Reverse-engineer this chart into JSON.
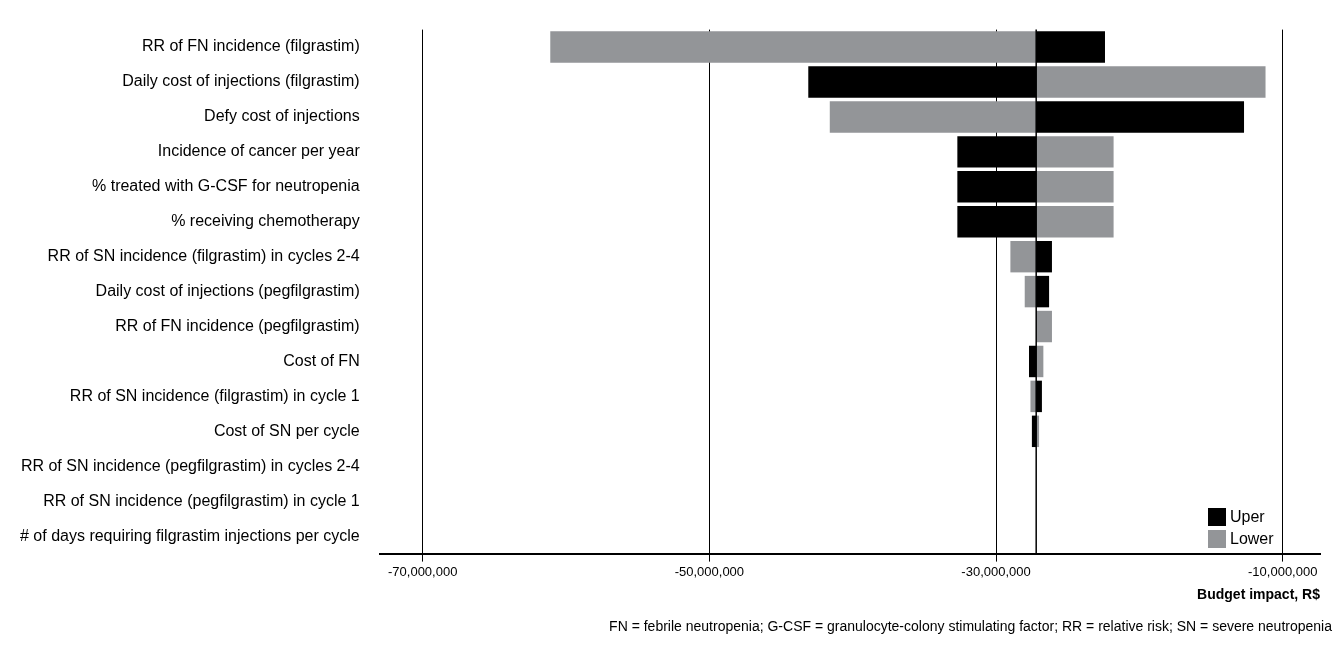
{
  "chart_data": {
    "type": "bar",
    "orientation": "horizontal",
    "xlabel": "Budget impact, R$",
    "categories": [
      "RR of FN incidence (filgrastim)",
      "Daily cost of injections (filgrastim)",
      "Defy cost of injections",
      "Incidence of cancer per year",
      "% treated with G-CSF for neutropenia",
      "% receiving chemotherapy",
      "RR of SN incidence (filgrastim) in cycles 2-4",
      "Daily cost of injections (pegfilgrastim)",
      "RR of FN incidence (pegfilgrastim)",
      "Cost of FN",
      "RR of SN incidence (filgrastim) in cycle 1",
      "Cost of SN per cycle",
      "RR of SN incidence (pegfilgrastim) in cycles 2-4",
      "RR of SN incidence (pegfilgrastim) in cycle 1",
      "# of days requiring filgrastim injections per cycle"
    ],
    "series": [
      {
        "name": "Uper",
        "color": "#000000",
        "base": [
          -27200000,
          -27200000,
          -27200000,
          -27200000,
          -27200000,
          -27200000,
          -27200000,
          -27200000,
          null,
          -27200000,
          -27200000,
          -27200000,
          null,
          null,
          null
        ],
        "values": [
          4800000,
          -15900000,
          14500000,
          -5500000,
          -5500000,
          -5500000,
          1100000,
          900000,
          null,
          -500000,
          400000,
          -300000,
          null,
          null,
          null
        ]
      },
      {
        "name": "Lower",
        "color": "#939598",
        "base": [
          -27200000,
          -27200000,
          -27200000,
          -27200000,
          -27200000,
          -27200000,
          -27200000,
          -27200000,
          -27200000,
          -27200000,
          -27200000,
          -27200000,
          null,
          null,
          null
        ],
        "values": [
          -33900000,
          16000000,
          -14400000,
          5400000,
          5400000,
          5400000,
          -1800000,
          -800000,
          1100000,
          500000,
          -400000,
          200000,
          null,
          null,
          null
        ]
      }
    ],
    "xlim": [
      -73000000,
      -7400000
    ],
    "xticks": [
      {
        "value": -70000000,
        "label": "-70,000,000"
      },
      {
        "value": -50000000,
        "label": "-50,000,000"
      },
      {
        "value": -30000000,
        "label": "-30,000,000"
      },
      {
        "value": -10000000,
        "label": "-10,000,000"
      }
    ],
    "ref_lines": [
      {
        "axis": "x",
        "value": -27200000,
        "color": "#000000"
      }
    ],
    "grid": "x",
    "legend": "bottom right",
    "annotations": [
      "FN = febrile neutropenia; G-CSF = granulocyte-colony stimulating factor; RR = relative risk; SN = severe neutropenia"
    ]
  }
}
